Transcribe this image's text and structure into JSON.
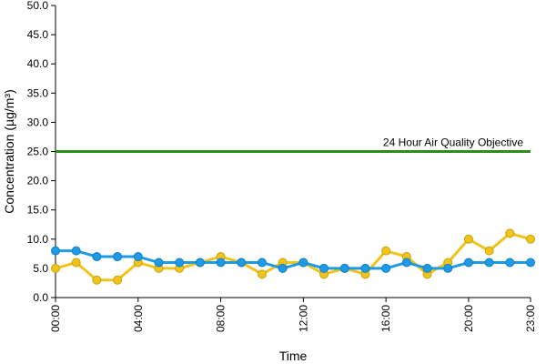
{
  "chart_data": {
    "type": "line",
    "xlabel": "Time",
    "ylabel": "Concentration (µg/m³)",
    "ylim": [
      0,
      50
    ],
    "yticks": [
      "0.0",
      "5.0",
      "10.0",
      "15.0",
      "20.0",
      "25.0",
      "30.0",
      "35.0",
      "40.0",
      "45.0",
      "50.0"
    ],
    "x": [
      "00:00",
      "01:00",
      "02:00",
      "03:00",
      "04:00",
      "05:00",
      "06:00",
      "07:00",
      "08:00",
      "09:00",
      "10:00",
      "11:00",
      "12:00",
      "13:00",
      "14:00",
      "15:00",
      "16:00",
      "17:00",
      "18:00",
      "19:00",
      "20:00",
      "21:00",
      "22:00",
      "23:00"
    ],
    "xtick_labels": [
      "00:00",
      "04:00",
      "08:00",
      "12:00",
      "16:00",
      "20:00",
      "23:00"
    ],
    "grid": false,
    "series": [
      {
        "color": "#f0c419",
        "values": [
          5,
          6,
          3,
          3,
          6,
          5,
          5,
          6,
          7,
          6,
          4,
          6,
          6,
          4,
          5,
          4,
          8,
          7,
          4,
          6,
          10,
          8,
          11,
          10
        ]
      },
      {
        "color": "#1e9be6",
        "values": [
          8,
          8,
          7,
          7,
          7,
          6,
          6,
          6,
          6,
          6,
          6,
          5,
          6,
          5,
          5,
          5,
          5,
          6,
          5,
          5,
          6,
          6,
          6,
          6
        ]
      }
    ],
    "objective": {
      "label": "24 Hour Air Quality Objective",
      "value": 25,
      "color": "#2e8b1e"
    }
  }
}
